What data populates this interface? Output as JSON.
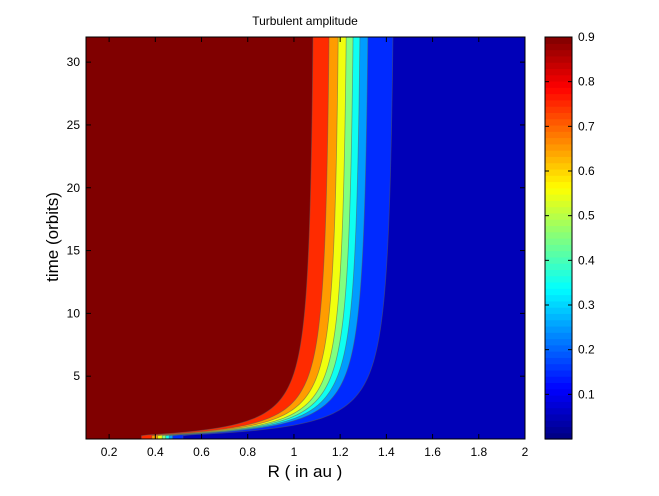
{
  "chart_data": {
    "type": "heatmap",
    "title": "Turbulent amplitude",
    "xlabel": "R ( in au )",
    "ylabel": "time (orbits)",
    "xlim": [
      0.1,
      2.0
    ],
    "ylim": [
      0.0,
      32.0
    ],
    "xticks": [
      0.2,
      0.4,
      0.6,
      0.8,
      1,
      1.2,
      1.4,
      1.6,
      1.8,
      2
    ],
    "yticks": [
      5,
      10,
      15,
      20,
      25,
      30
    ],
    "colorbar": {
      "range": [
        0.0,
        0.9
      ],
      "ticks": [
        0.1,
        0.2,
        0.3,
        0.4,
        0.5,
        0.6,
        0.7,
        0.8,
        0.9
      ],
      "colormap": "jet"
    },
    "contour_levels": [
      0.1,
      0.2,
      0.3,
      0.4,
      0.5,
      0.6,
      0.7,
      0.8,
      0.9
    ],
    "contour_fronts": [
      {
        "level": 0.8,
        "r_late": 1.1,
        "r_early": 0.34
      },
      {
        "level": 0.7,
        "r_late": 1.17,
        "r_early": 0.385
      },
      {
        "level": 0.6,
        "r_late": 1.21,
        "r_early": 0.41
      },
      {
        "level": 0.5,
        "r_late": 1.245,
        "r_early": 0.43
      },
      {
        "level": 0.4,
        "r_late": 1.275,
        "r_early": 0.445
      },
      {
        "level": 0.3,
        "r_late": 1.305,
        "r_early": 0.46
      },
      {
        "level": 0.2,
        "r_late": 1.34,
        "r_early": 0.475
      },
      {
        "level": 0.1,
        "r_late": 1.45,
        "r_early": 0.52
      }
    ],
    "grid": false
  }
}
